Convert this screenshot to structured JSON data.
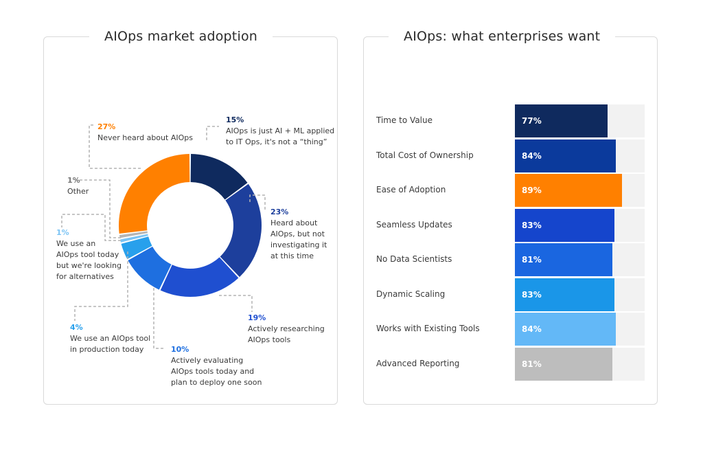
{
  "chart_data": [
    {
      "type": "pie",
      "title": "AIOps market adoption",
      "slices": [
        {
          "value": 15,
          "pct_label": "15%",
          "lines": [
            "AIOps is just AI + ML applied",
            "to IT Ops, it's not a “thing”"
          ],
          "color": "#0f2a5e"
        },
        {
          "value": 23,
          "pct_label": "23%",
          "lines": [
            "Heard about",
            "AIOps, but not",
            "investigating it",
            "at this time"
          ],
          "color": "#1d3f9c"
        },
        {
          "value": 19,
          "pct_label": "19%",
          "lines": [
            "Actively researching",
            "AIOps tools"
          ],
          "color": "#1f4fd0"
        },
        {
          "value": 10,
          "pct_label": "10%",
          "lines": [
            "Actively evaluating",
            "AIOps tools today and",
            "plan to deploy one soon"
          ],
          "color": "#1e6fe0"
        },
        {
          "value": 4,
          "pct_label": "4%",
          "lines": [
            "We use an AIOps tool",
            "in production today"
          ],
          "color": "#28a0ec"
        },
        {
          "value": 1,
          "pct_label": "1%",
          "lines": [
            "We use an",
            "AIOps tool today",
            "but we're looking",
            "for alternatives"
          ],
          "color": "#7cc4f4"
        },
        {
          "value": 1,
          "pct_label": "1%",
          "lines": [
            "Other"
          ],
          "color": "#b5b5b5"
        },
        {
          "value": 27,
          "pct_label": "27%",
          "lines": [
            "Never heard about AIOps"
          ],
          "color": "#ff8000"
        }
      ],
      "pct_colors": {
        "15%": "#0f2a5e",
        "23%": "#1d3f9c",
        "19%": "#1f4fd0",
        "10%": "#1e6fe0",
        "4%": "#28a0ec",
        "1%a": "#7cc4f4",
        "1%b": "#7a7a7a",
        "27%": "#ff8000"
      }
    },
    {
      "type": "bar",
      "title": "AIOps: what enterprises want",
      "categories": [
        "Time to Value",
        "Total Cost of Ownership",
        "Ease of Adoption",
        "Seamless Updates",
        "No Data Scientists",
        "Dynamic Scaling",
        "Works with Existing Tools",
        "Advanced Reporting"
      ],
      "values": [
        77,
        84,
        89,
        83,
        81,
        83,
        84,
        81
      ],
      "value_labels": [
        "77%",
        "84%",
        "89%",
        "83%",
        "81%",
        "83%",
        "84%",
        "81%"
      ],
      "colors": [
        "#0f2a5e",
        "#0b3a9c",
        "#ff8000",
        "#1545cc",
        "#1a66e0",
        "#1a96e8",
        "#63b8f7",
        "#bdbdbd"
      ],
      "xlim": [
        0,
        100
      ]
    }
  ]
}
